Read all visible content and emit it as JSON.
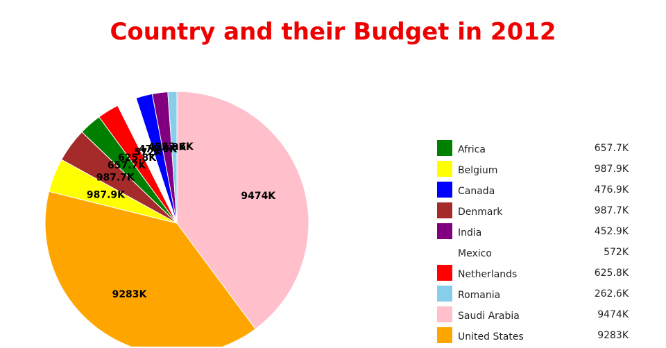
{
  "title": "Country and their Budget in 2012",
  "chart_data": {
    "type": "pie",
    "title": "Country and their Budget in 2012",
    "legend_position": "right",
    "start_angle_deg": 0,
    "direction": "clockwise",
    "slices": [
      {
        "name": "Saudi Arabia",
        "value": 9474,
        "label": "9474K",
        "color": "#ffc0cb"
      },
      {
        "name": "United States",
        "value": 9283,
        "label": "9283K",
        "color": "#ffa500"
      },
      {
        "name": "Belgium",
        "value": 987.9,
        "label": "987.9K",
        "color": "#ffff00"
      },
      {
        "name": "Denmark",
        "value": 987.7,
        "label": "987.7K",
        "color": "#a52a2a"
      },
      {
        "name": "Africa",
        "value": 657.7,
        "label": "657.7K",
        "color": "#008000"
      },
      {
        "name": "Netherlands",
        "value": 625.8,
        "label": "625.8K",
        "color": "#ff0000"
      },
      {
        "name": "Mexico",
        "value": 572,
        "label": "572K",
        "color": "#ffffff"
      },
      {
        "name": "Canada",
        "value": 476.9,
        "label": "476.9K",
        "color": "#0000ff"
      },
      {
        "name": "India",
        "value": 452.9,
        "label": "452.9K",
        "color": "#800080"
      },
      {
        "name": "Romania",
        "value": 262.6,
        "label": "262.6K",
        "color": "#87ceeb"
      }
    ],
    "legend": [
      {
        "name": "Africa",
        "label": "657.7K",
        "color": "#008000"
      },
      {
        "name": "Belgium",
        "label": "987.9K",
        "color": "#ffff00"
      },
      {
        "name": "Canada",
        "label": "476.9K",
        "color": "#0000ff"
      },
      {
        "name": "Denmark",
        "label": "987.7K",
        "color": "#a52a2a"
      },
      {
        "name": "India",
        "label": "452.9K",
        "color": "#800080"
      },
      {
        "name": "Mexico",
        "label": "572K",
        "color": "#ffffff"
      },
      {
        "name": "Netherlands",
        "label": "625.8K",
        "color": "#ff0000"
      },
      {
        "name": "Romania",
        "label": "262.6K",
        "color": "#87ceeb"
      },
      {
        "name": "Saudi Arabia",
        "label": "9474K",
        "color": "#ffc0cb"
      },
      {
        "name": "United States",
        "label": "9283K",
        "color": "#ffa500"
      }
    ]
  }
}
